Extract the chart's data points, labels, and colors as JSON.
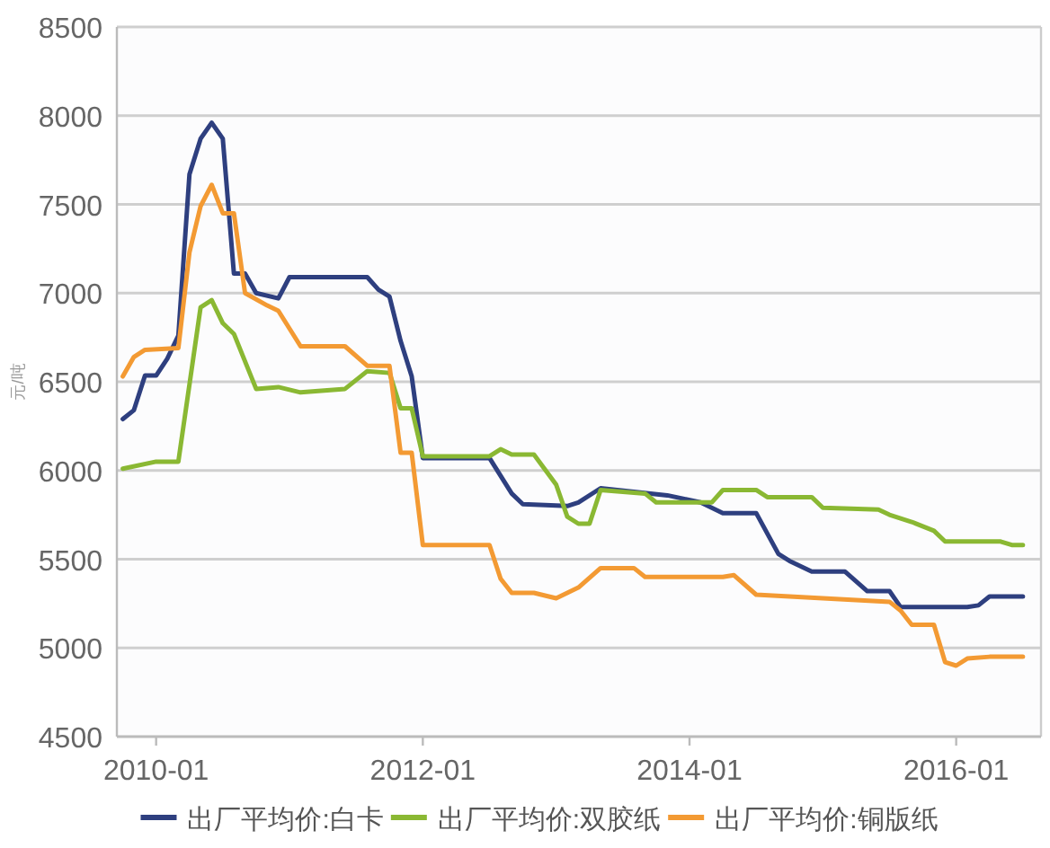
{
  "chart_data": {
    "type": "line",
    "ylabel": "元/吨",
    "ylim": [
      4500,
      8500
    ],
    "yticks": [
      4500,
      5000,
      5500,
      6000,
      6500,
      7000,
      7500,
      8000,
      8500
    ],
    "xlim": [
      "2009-09-15",
      "2016-08-20"
    ],
    "xticks": [
      "2010-01",
      "2012-01",
      "2014-01",
      "2016-01"
    ],
    "grid": "y",
    "legend": "bottom",
    "marker": "none",
    "line_style": "solid",
    "series": [
      {
        "name": "出厂平均价:白卡",
        "color": "#2e3f7f",
        "x": [
          "2009-10",
          "2009-11",
          "2009-12",
          "2010-01",
          "2010-02",
          "2010-03",
          "2010-04",
          "2010-05",
          "2010-06",
          "2010-07",
          "2010-08",
          "2010-09",
          "2010-10",
          "2010-12",
          "2011-01",
          "2011-08",
          "2011-09",
          "2011-10",
          "2011-11",
          "2011-12",
          "2012-01",
          "2012-07",
          "2012-09",
          "2012-10",
          "2013-02",
          "2013-03",
          "2013-05",
          "2013-11",
          "2014-02",
          "2014-04",
          "2014-07",
          "2014-09",
          "2014-10",
          "2014-12",
          "2015-03",
          "2015-05",
          "2015-07",
          "2015-08",
          "2016-02",
          "2016-03",
          "2016-04",
          "2016-07"
        ],
        "values": [
          6290,
          6340,
          6535,
          6535,
          6630,
          6760,
          7670,
          7870,
          7960,
          7870,
          7110,
          7110,
          7000,
          6970,
          7090,
          7090,
          7020,
          6980,
          6730,
          6530,
          6070,
          6070,
          5870,
          5810,
          5800,
          5820,
          5900,
          5860,
          5820,
          5760,
          5760,
          5530,
          5490,
          5430,
          5430,
          5320,
          5320,
          5230,
          5230,
          5240,
          5290,
          5290
        ]
      },
      {
        "name": "出厂平均价:双胶纸",
        "color": "#8ab833",
        "x": [
          "2009-10",
          "2010-01",
          "2010-03",
          "2010-05",
          "2010-06",
          "2010-07",
          "2010-08",
          "2010-10",
          "2010-12",
          "2011-02",
          "2011-06",
          "2011-08",
          "2011-10",
          "2011-11",
          "2011-12",
          "2012-01",
          "2012-07",
          "2012-08",
          "2012-09",
          "2012-11",
          "2013-01",
          "2013-02",
          "2013-03",
          "2013-04",
          "2013-05",
          "2013-09",
          "2013-10",
          "2014-03",
          "2014-04",
          "2014-07",
          "2014-08",
          "2014-12",
          "2015-01",
          "2015-06",
          "2015-07",
          "2015-09",
          "2015-11",
          "2015-12",
          "2016-05",
          "2016-06",
          "2016-07"
        ],
        "values": [
          6010,
          6050,
          6050,
          6920,
          6960,
          6830,
          6770,
          6460,
          6470,
          6440,
          6460,
          6560,
          6550,
          6350,
          6350,
          6080,
          6080,
          6120,
          6090,
          6090,
          5920,
          5740,
          5700,
          5700,
          5890,
          5870,
          5820,
          5820,
          5890,
          5890,
          5850,
          5850,
          5790,
          5780,
          5750,
          5710,
          5660,
          5600,
          5600,
          5580,
          5580
        ]
      },
      {
        "name": "出厂平均价:铜版纸",
        "color": "#f39a33",
        "x": [
          "2009-10",
          "2009-11",
          "2009-12",
          "2010-03",
          "2010-04",
          "2010-05",
          "2010-06",
          "2010-07",
          "2010-08",
          "2010-09",
          "2010-11",
          "2010-12",
          "2011-02",
          "2011-06",
          "2011-08",
          "2011-10",
          "2011-11",
          "2011-12",
          "2012-01",
          "2012-07",
          "2012-08",
          "2012-09",
          "2012-11",
          "2013-01",
          "2013-03",
          "2013-05",
          "2013-08",
          "2013-09",
          "2014-04",
          "2014-05",
          "2014-07",
          "2015-01",
          "2015-07",
          "2015-08",
          "2015-09",
          "2015-11",
          "2015-12",
          "2016-01",
          "2016-02",
          "2016-04",
          "2016-07"
        ],
        "values": [
          6530,
          6640,
          6680,
          6690,
          7230,
          7490,
          7610,
          7450,
          7450,
          7000,
          6930,
          6900,
          6700,
          6700,
          6590,
          6590,
          6100,
          6100,
          5580,
          5580,
          5390,
          5310,
          5310,
          5280,
          5340,
          5450,
          5450,
          5400,
          5400,
          5410,
          5300,
          5280,
          5260,
          5210,
          5130,
          5130,
          4920,
          4900,
          4940,
          4950,
          4950
        ]
      }
    ]
  }
}
